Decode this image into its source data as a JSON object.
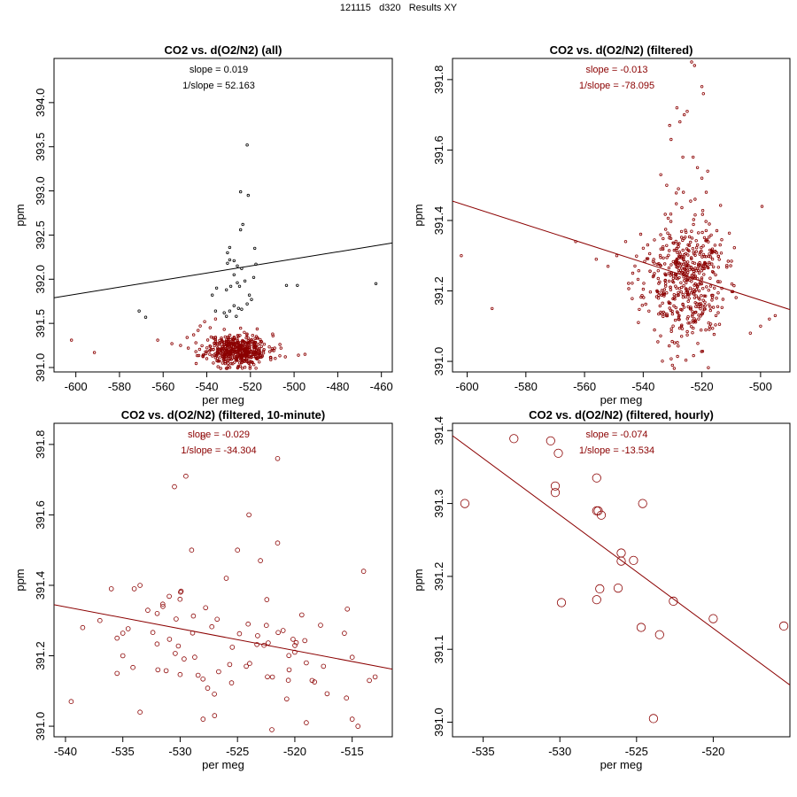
{
  "page": {
    "title": "121115   d320   Results XY"
  },
  "colors": {
    "red": "#8b0000",
    "black": "#000000"
  },
  "chart_data": [
    {
      "type": "scatter",
      "title": "CO2 vs. d(O2/N2) (all)",
      "xlabel": "per meg",
      "ylabel": "ppm",
      "xlim": [
        -610,
        -455
      ],
      "ylim": [
        390.95,
        394.5
      ],
      "xticks": [
        -600,
        -580,
        -560,
        -540,
        -520,
        -500,
        -480,
        -460
      ],
      "yticks": [
        391.0,
        391.5,
        392.0,
        392.5,
        393.0,
        393.5,
        394.0
      ],
      "ytick_labels": [
        "391.0",
        "391.5",
        "392.0",
        "392.5",
        "393.0",
        "393.5",
        "394.0"
      ],
      "annotations": [
        "slope = 0.019",
        "1/slope = 52.163"
      ],
      "annotation_color": "#000000",
      "fit_line": [
        [
          -610,
          391.79
        ],
        [
          -455,
          392.41
        ]
      ],
      "fit_color": "#000000",
      "point_radius": 1.3,
      "series": [
        {
          "name": "outliers (black)",
          "color": "#000000",
          "points": [
            [
              -521.5,
              393.52
            ],
            [
              -524.5,
              392.99
            ],
            [
              -521,
              392.95
            ],
            [
              -523.5,
              392.62
            ],
            [
              -524.5,
              392.56
            ],
            [
              -529.5,
              392.36
            ],
            [
              -530.5,
              392.3
            ],
            [
              -518,
              392.35
            ],
            [
              -529.5,
              392.22
            ],
            [
              -527.5,
              392.21
            ],
            [
              -530.5,
              392.18
            ],
            [
              -526,
              392.15
            ],
            [
              -517.5,
              392.17
            ],
            [
              -524,
              392.12
            ],
            [
              -527.5,
              392.05
            ],
            [
              -518.5,
              392.02
            ],
            [
              -522.5,
              391.98
            ],
            [
              -526,
              391.96
            ],
            [
              -529,
              391.92
            ],
            [
              -525,
              391.92
            ],
            [
              -531,
              391.88
            ],
            [
              -535.5,
              391.9
            ],
            [
              -503.5,
              391.93
            ],
            [
              -498.5,
              391.93
            ],
            [
              -462.5,
              391.95
            ],
            [
              -537.5,
              391.82
            ],
            [
              -520.5,
              391.82
            ],
            [
              -519.5,
              391.77
            ],
            [
              -521.5,
              391.72
            ],
            [
              -527.5,
              391.7
            ],
            [
              -525.5,
              391.67
            ],
            [
              -524,
              391.66
            ],
            [
              -529.5,
              391.64
            ],
            [
              -536,
              391.64
            ],
            [
              -532,
              391.62
            ],
            [
              -571,
              391.64
            ],
            [
              -568,
              391.57
            ],
            [
              -531,
              391.58
            ],
            [
              -526.5,
              391.58
            ]
          ]
        },
        {
          "name": "filtered (red)",
          "color": "#8b0000",
          "generated": {
            "count": 480,
            "seed": 11,
            "x_mean": -526,
            "x_sd": 7,
            "y_mean": 391.2,
            "y_sd": 0.09,
            "x_min": -545,
            "x_max": -500,
            "y_min": 390.99,
            "y_max": 391.45
          },
          "points": [
            [
              -602,
              391.31
            ],
            [
              -591.5,
              391.17
            ],
            [
              -562.5,
              391.31
            ],
            [
              -556,
              391.27
            ],
            [
              -552,
              391.25
            ],
            [
              -548.5,
              391.22
            ],
            [
              -546,
              391.37
            ],
            [
              -545,
              391.18
            ],
            [
              -549,
              391.34
            ],
            [
              -544,
              391.42
            ],
            [
              -543,
              391.47
            ],
            [
              -541,
              391.52
            ],
            [
              -536,
              391.55
            ],
            [
              -540,
              391.18
            ],
            [
              -498,
              391.14
            ],
            [
              -504,
              391.12
            ],
            [
              -495,
              391.15
            ],
            [
              -506,
              391.22
            ]
          ]
        }
      ]
    },
    {
      "type": "scatter",
      "title": "CO2 vs. d(O2/N2) (filtered)",
      "xlabel": "per meg",
      "ylabel": "ppm",
      "xlim": [
        -605,
        -490
      ],
      "ylim": [
        390.97,
        391.86
      ],
      "xticks": [
        -600,
        -580,
        -560,
        -540,
        -520,
        -500
      ],
      "yticks": [
        391.0,
        391.2,
        391.4,
        391.6,
        391.8
      ],
      "ytick_labels": [
        "391.0",
        "391.2",
        "391.4",
        "391.6",
        "391.8"
      ],
      "annotations": [
        "slope = -0.013",
        "1/slope = -78.095"
      ],
      "annotation_color": "#8b0000",
      "fit_line": [
        [
          -605,
          391.455
        ],
        [
          -490,
          391.147
        ]
      ],
      "fit_color": "#8b0000",
      "point_radius": 1.3,
      "series": [
        {
          "name": "filtered (red)",
          "color": "#8b0000",
          "generated": {
            "count": 520,
            "seed": 23,
            "x_mean": -526,
            "x_sd": 7,
            "y_mean": 391.23,
            "y_sd": 0.09,
            "x_min": -545,
            "x_max": -505,
            "y_min": 390.98,
            "y_max": 391.48
          },
          "points": [
            [
              -602,
              391.3
            ],
            [
              -591.5,
              391.15
            ],
            [
              -563,
              391.34
            ],
            [
              -556,
              391.29
            ],
            [
              -552,
              391.27
            ],
            [
              -549,
              391.3
            ],
            [
              -546,
              391.34
            ],
            [
              -497,
              391.12
            ],
            [
              -499.5,
              391.44
            ],
            [
              -495,
              391.13
            ],
            [
              -503.5,
              391.08
            ],
            [
              -500,
              391.1
            ],
            [
              -523.5,
              391.85
            ],
            [
              -522.5,
              391.84
            ],
            [
              -520,
              391.78
            ],
            [
              -519.5,
              391.76
            ],
            [
              -528.5,
              391.72
            ],
            [
              -526,
              391.7
            ],
            [
              -525,
              391.71
            ],
            [
              -527.5,
              391.68
            ],
            [
              -531,
              391.67
            ],
            [
              -530.5,
              391.63
            ],
            [
              -526.5,
              391.58
            ],
            [
              -523,
              391.58
            ],
            [
              -521.5,
              391.55
            ],
            [
              -518,
              391.54
            ],
            [
              -520,
              391.52
            ],
            [
              -534,
              391.53
            ],
            [
              -532,
              391.5
            ],
            [
              -528,
              391.49
            ]
          ]
        }
      ]
    },
    {
      "type": "scatter",
      "title": "CO2 vs. d(O2/N2) (filtered, 10-minute)",
      "xlabel": "per meg",
      "ylabel": "ppm",
      "xlim": [
        -541,
        -511.5
      ],
      "ylim": [
        390.97,
        391.86
      ],
      "xticks": [
        -540,
        -535,
        -530,
        -525,
        -520,
        -515
      ],
      "yticks": [
        391.0,
        391.2,
        391.4,
        391.6,
        391.8
      ],
      "ytick_labels": [
        "391.0",
        "391.2",
        "391.4",
        "391.6",
        "391.8"
      ],
      "annotations": [
        "slope = -0.029",
        "1/slope = -34.304"
      ],
      "annotation_color": "#8b0000",
      "fit_line": [
        [
          -541,
          391.345
        ],
        [
          -511.5,
          391.162
        ]
      ],
      "fit_color": "#8b0000",
      "point_radius": 2.4,
      "series": [
        {
          "name": "10-minute means",
          "color": "#8b0000",
          "generated": {
            "count": 62,
            "seed": 37,
            "x_mean": -525,
            "x_sd": 4.5,
            "y_mean": 391.23,
            "y_sd": 0.08,
            "x_min": -535,
            "x_max": -515,
            "y_min": 391.02,
            "y_max": 391.42
          },
          "points": [
            [
              -539.5,
              391.07
            ],
            [
              -538.5,
              391.28
            ],
            [
              -537,
              391.3
            ],
            [
              -536,
              391.39
            ],
            [
              -534,
              391.39
            ],
            [
              -533.5,
              391.4
            ],
            [
              -533.5,
              391.04
            ],
            [
              -528,
              391.82
            ],
            [
              -529.5,
              391.71
            ],
            [
              -530.5,
              391.68
            ],
            [
              -521.5,
              391.76
            ],
            [
              -524,
              391.6
            ],
            [
              -521.5,
              391.52
            ],
            [
              -529,
              391.5
            ],
            [
              -525,
              391.5
            ],
            [
              -523,
              391.47
            ],
            [
              -514,
              391.44
            ],
            [
              -513,
              391.14
            ],
            [
              -513.5,
              391.13
            ],
            [
              -515.5,
              391.08
            ],
            [
              -515,
              391.02
            ],
            [
              -514.5,
              391.0
            ],
            [
              -519,
              391.01
            ],
            [
              -522,
              390.99
            ],
            [
              -528,
              391.02
            ],
            [
              -527,
              391.03
            ],
            [
              -535.5,
              391.15
            ],
            [
              -535,
              391.2
            ],
            [
              -535.5,
              391.25
            ],
            [
              -532,
              391.32
            ],
            [
              -531.5,
              391.34
            ],
            [
              -520,
              391.21
            ],
            [
              -519,
              391.18
            ],
            [
              -517.5,
              391.17
            ],
            [
              -518.5,
              391.13
            ],
            [
              -520.5,
              391.16
            ]
          ]
        }
      ]
    },
    {
      "type": "scatter",
      "title": "CO2 vs. d(O2/N2) (filtered, hourly)",
      "xlabel": "per meg",
      "ylabel": "ppm",
      "xlim": [
        -537,
        -515
      ],
      "ylim": [
        390.98,
        391.41
      ],
      "xticks": [
        -535,
        -530,
        -525,
        -520
      ],
      "yticks": [
        391.0,
        391.1,
        391.2,
        391.3,
        391.4
      ],
      "ytick_labels": [
        "391.0",
        "391.1",
        "391.2",
        "391.3",
        "391.4"
      ],
      "annotations": [
        "slope = -0.074",
        "1/slope = -13.534"
      ],
      "annotation_color": "#8b0000",
      "fit_line": [
        [
          -537,
          391.393
        ],
        [
          -515,
          391.051
        ]
      ],
      "fit_color": "#8b0000",
      "point_radius": 4.7,
      "series": [
        {
          "name": "hourly means",
          "color": "#8b0000",
          "points": [
            [
              -536.2,
              391.3
            ],
            [
              -533,
              391.389
            ],
            [
              -530.6,
              391.386
            ],
            [
              -530.1,
              391.369
            ],
            [
              -530.3,
              391.324
            ],
            [
              -530.3,
              391.315
            ],
            [
              -529.9,
              391.164
            ],
            [
              -527.6,
              391.335
            ],
            [
              -527.6,
              391.29
            ],
            [
              -527.5,
              391.29
            ],
            [
              -527.3,
              391.284
            ],
            [
              -527.4,
              391.183
            ],
            [
              -527.6,
              391.168
            ],
            [
              -526,
              391.232
            ],
            [
              -526,
              391.221
            ],
            [
              -525.2,
              391.222
            ],
            [
              -524.6,
              391.3
            ],
            [
              -524.7,
              391.13
            ],
            [
              -526.2,
              391.184
            ],
            [
              -523.9,
              391.005
            ],
            [
              -523.5,
              391.12
            ],
            [
              -522.6,
              391.166
            ],
            [
              -520,
              391.142
            ],
            [
              -515.4,
              391.132
            ]
          ]
        }
      ]
    }
  ]
}
